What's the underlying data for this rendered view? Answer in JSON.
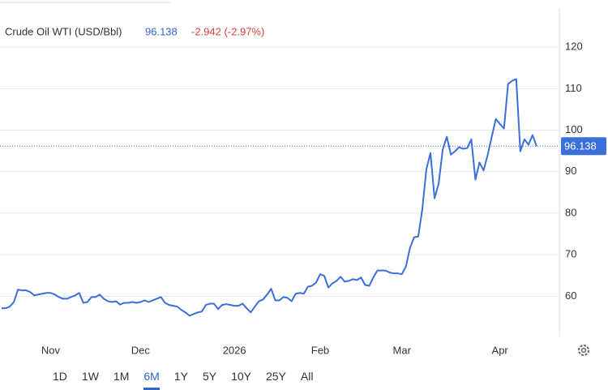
{
  "header": {
    "title": "Crude Oil WTI (USD/Bbl)",
    "price": 96.138,
    "change": "-2.942 (-2.97%)"
  },
  "chart_data": {
    "type": "line",
    "color": "#3b6fd9",
    "categories": [
      null,
      null,
      null,
      null,
      null,
      null,
      null,
      null,
      null,
      null,
      null,
      null,
      "Nov",
      null,
      null,
      null,
      null,
      null,
      null,
      null,
      null,
      null,
      null,
      null,
      null,
      null,
      null,
      null,
      null,
      null,
      null,
      null,
      null,
      null,
      "Dec",
      null,
      null,
      null,
      null,
      null,
      null,
      null,
      null,
      null,
      null,
      null,
      null,
      null,
      null,
      null,
      null,
      null,
      null,
      null,
      null,
      null,
      null,
      "2026",
      null,
      null,
      null,
      null,
      null,
      null,
      null,
      null,
      null,
      null,
      null,
      null,
      null,
      null,
      null,
      null,
      null,
      null,
      null,
      null,
      "Feb",
      null,
      null,
      null,
      null,
      null,
      null,
      null,
      null,
      null,
      null,
      null,
      null,
      null,
      null,
      null,
      null,
      null,
      null,
      null,
      "Mar",
      null,
      null,
      null,
      null,
      null,
      null,
      null,
      null,
      null,
      null,
      null,
      null,
      null,
      null,
      null,
      null,
      null,
      null,
      null,
      null,
      null,
      null,
      null,
      "Apr",
      null,
      null,
      null,
      null,
      null,
      null,
      null,
      null,
      null
    ],
    "values": [
      57.1,
      57.1,
      57.5,
      58.6,
      61.6,
      61.4,
      61.4,
      61.0,
      60.2,
      60.4,
      60.6,
      60.8,
      60.8,
      60.4,
      59.8,
      59.4,
      59.4,
      59.8,
      60.2,
      60.8,
      58.4,
      58.6,
      59.8,
      59.8,
      60.4,
      59.4,
      58.8,
      58.6,
      58.8,
      58.0,
      58.4,
      58.4,
      58.6,
      58.4,
      58.6,
      59.0,
      58.6,
      59.0,
      59.4,
      59.8,
      58.4,
      57.9,
      57.7,
      57.5,
      56.7,
      56.1,
      55.3,
      55.7,
      56.1,
      56.3,
      57.9,
      58.2,
      58.2,
      56.9,
      57.9,
      58.1,
      57.9,
      57.7,
      57.7,
      58.2,
      57.1,
      56.1,
      57.5,
      58.8,
      59.2,
      60.4,
      61.8,
      59.0,
      59.0,
      59.8,
      59.6,
      58.8,
      60.6,
      60.8,
      60.6,
      62.3,
      62.5,
      63.3,
      65.3,
      64.9,
      62.1,
      63.1,
      63.7,
      64.7,
      63.5,
      63.7,
      64.1,
      63.9,
      64.5,
      62.7,
      62.5,
      64.5,
      66.2,
      66.2,
      66.2,
      65.7,
      65.5,
      65.5,
      65.3,
      67.2,
      71.7,
      74.2,
      74.4,
      80.9,
      90.6,
      94.5,
      83.6,
      87.1,
      95.3,
      98.4,
      94.1,
      94.9,
      95.9,
      95.5,
      95.7,
      97.8,
      88.1,
      92.2,
      90.3,
      94.0,
      98.4,
      102.7,
      101.5,
      100.4,
      111.1,
      111.9,
      112.3,
      94.9,
      97.8,
      96.5,
      98.8,
      96.138
    ],
    "ylim": [
      50.3,
      129.4
    ],
    "yticks": [
      60,
      70,
      80,
      90,
      100,
      110,
      120
    ],
    "grid": true,
    "last_value_line": true
  },
  "range_buttons": [
    "1D",
    "1W",
    "1M",
    "6M",
    "1Y",
    "5Y",
    "10Y",
    "25Y",
    "All"
  ],
  "selected_range": "6M"
}
